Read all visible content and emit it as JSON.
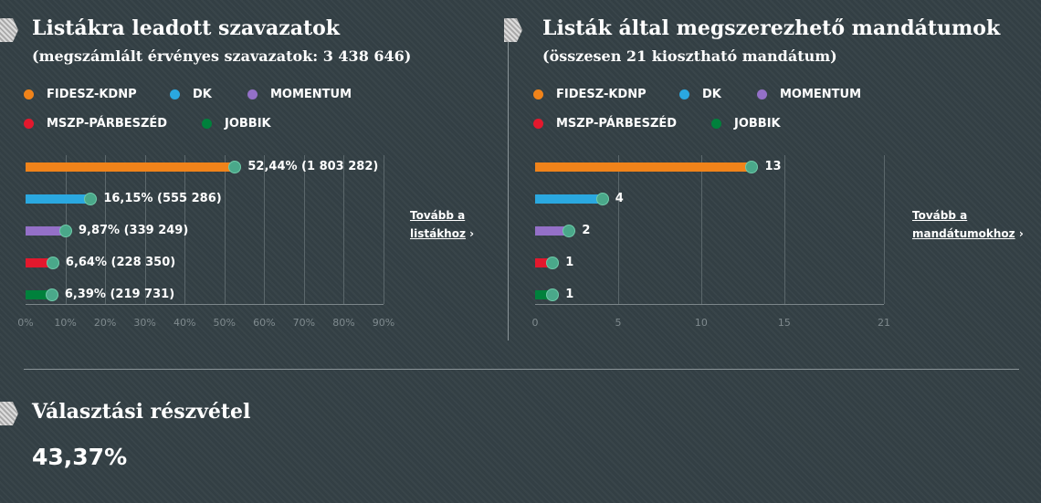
{
  "legend": [
    {
      "name": "FIDESZ-KDNP",
      "color": "#f0831a"
    },
    {
      "name": "DK",
      "color": "#2aa8e0"
    },
    {
      "name": "MOMENTUM",
      "color": "#9470c8"
    },
    {
      "name": "MSZP-PÁRBESZÉD",
      "color": "#e3182d"
    },
    {
      "name": "JOBBIK",
      "color": "#00813c"
    }
  ],
  "left": {
    "title": "Listákra leadott szavazatok",
    "subtitle": "(megszámlált érvényes szavazatok: 3 438 646)",
    "more_line1": "Tovább a",
    "more_line2": "listákhoz",
    "chevron": "›"
  },
  "right": {
    "title": "Listák által megszerezhető mandátumok",
    "subtitle": "(összesen 21 kiosztható mandátum)",
    "more_line1": "Tovább a",
    "more_line2": "mandátumokhoz",
    "chevron": "›"
  },
  "turnout": {
    "title": "Választási részvétel",
    "value": "43,37%"
  },
  "chart_data": [
    {
      "type": "bar",
      "orientation": "horizontal",
      "categories": [
        "FIDESZ-KDNP",
        "DK",
        "MOMENTUM",
        "MSZP-PÁRBESZÉD",
        "JOBBIK"
      ],
      "values": [
        52.44,
        16.15,
        9.87,
        6.64,
        6.39
      ],
      "labels": [
        "52,44% (1 803 282)",
        "16,15% (555 286)",
        "9,87% (339 249)",
        "6,64% (228 350)",
        "6,39% (219 731)"
      ],
      "xlim": [
        0,
        90
      ],
      "ticks": [
        0,
        10,
        20,
        30,
        40,
        50,
        60,
        70,
        80,
        90
      ],
      "tick_labels": [
        "0%",
        "10%",
        "20%",
        "30%",
        "40%",
        "50%",
        "60%",
        "70%",
        "80%",
        "90%"
      ]
    },
    {
      "type": "bar",
      "orientation": "horizontal",
      "categories": [
        "FIDESZ-KDNP",
        "DK",
        "MOMENTUM",
        "MSZP-PÁRBESZÉD",
        "JOBBIK"
      ],
      "values": [
        13,
        4,
        2,
        1,
        1
      ],
      "labels": [
        "13",
        "4",
        "2",
        "1",
        "1"
      ],
      "xlim": [
        0,
        21
      ],
      "ticks": [
        0,
        5,
        10,
        15,
        21
      ],
      "tick_labels": [
        "0",
        "5",
        "10",
        "15",
        "21"
      ]
    }
  ]
}
